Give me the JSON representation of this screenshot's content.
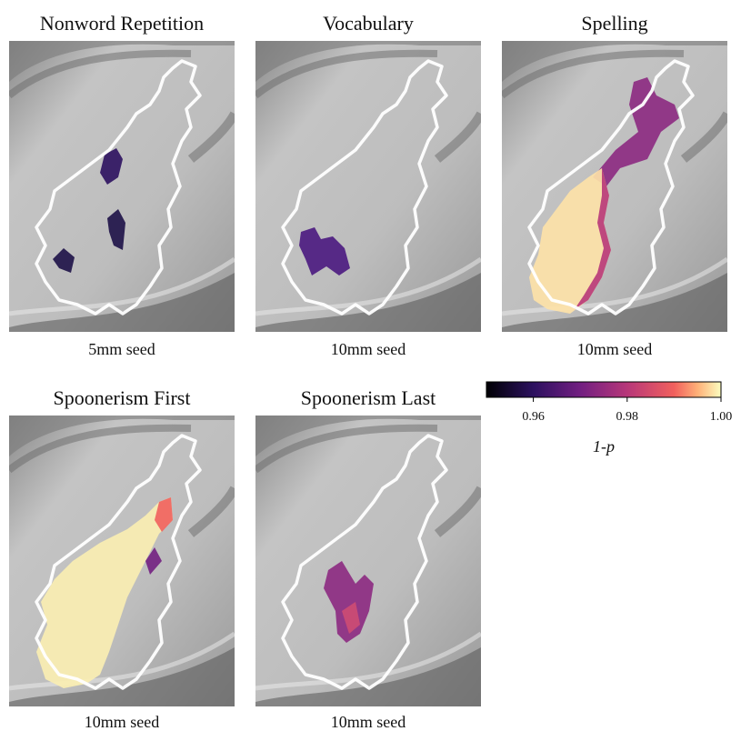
{
  "panels": [
    {
      "title": "Nonword Repetition",
      "caption": "5mm seed"
    },
    {
      "title": "Vocabulary",
      "caption": "10mm seed"
    },
    {
      "title": "Spelling",
      "caption": "10mm seed"
    },
    {
      "title": "Spoonerism First",
      "caption": "10mm seed"
    },
    {
      "title": "Spoonerism Last",
      "caption": "10mm seed"
    }
  ],
  "colorbar": {
    "label": "1-p",
    "lim": [
      0.95,
      1.0
    ],
    "ticks": [
      0.96,
      0.98,
      {
        "value": 1,
        "label": "1.00"
      }
    ]
  }
}
